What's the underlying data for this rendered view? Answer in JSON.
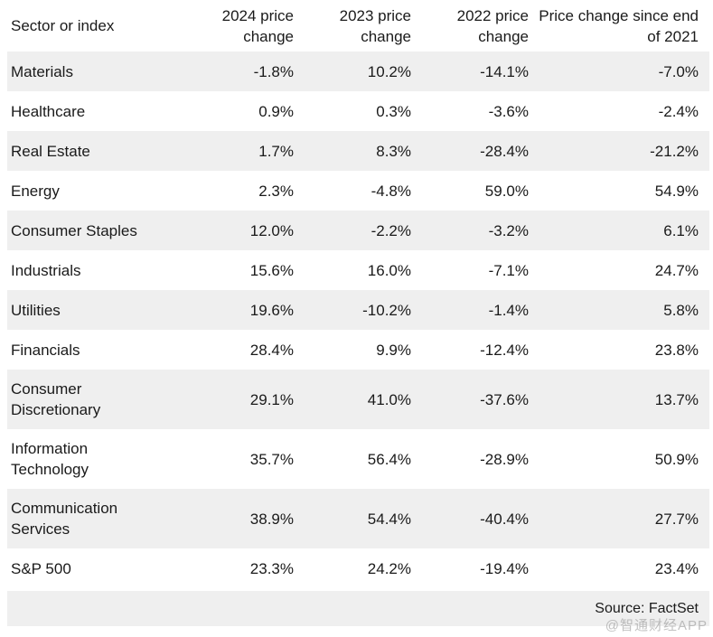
{
  "chart_data": {
    "type": "table",
    "columns": [
      "Sector or index",
      "2024 price change",
      "2023 price change",
      "2022 price change",
      "Price change since end of 2021"
    ],
    "rows": [
      {
        "sector": "Materials",
        "values": [
          "-1.8%",
          "10.2%",
          "-14.1%",
          "-7.0%"
        ]
      },
      {
        "sector": "Healthcare",
        "values": [
          "0.9%",
          "0.3%",
          "-3.6%",
          "-2.4%"
        ]
      },
      {
        "sector": "Real Estate",
        "values": [
          "1.7%",
          "8.3%",
          "-28.4%",
          "-21.2%"
        ]
      },
      {
        "sector": "Energy",
        "values": [
          "2.3%",
          "-4.8%",
          "59.0%",
          "54.9%"
        ]
      },
      {
        "sector": "Consumer Staples",
        "values": [
          "12.0%",
          "-2.2%",
          "-3.2%",
          "6.1%"
        ]
      },
      {
        "sector": "Industrials",
        "values": [
          "15.6%",
          "16.0%",
          "-7.1%",
          "24.7%"
        ]
      },
      {
        "sector": "Utilities",
        "values": [
          "19.6%",
          "-10.2%",
          "-1.4%",
          "5.8%"
        ]
      },
      {
        "sector": "Financials",
        "values": [
          "28.4%",
          "9.9%",
          "-12.4%",
          "23.8%"
        ]
      },
      {
        "sector": "Consumer Discretionary",
        "values": [
          "29.1%",
          "41.0%",
          "-37.6%",
          "13.7%"
        ]
      },
      {
        "sector": "Information Technology",
        "values": [
          "35.7%",
          "56.4%",
          "-28.9%",
          "50.9%"
        ]
      },
      {
        "sector": "Communication Services",
        "values": [
          "38.9%",
          "54.4%",
          "-40.4%",
          "27.7%"
        ]
      },
      {
        "sector": "S&P 500",
        "values": [
          "23.3%",
          "24.2%",
          "-19.4%",
          "23.4%"
        ]
      }
    ],
    "source_note": "Source: FactSet",
    "layout_hints": {
      "striped_rows": true,
      "value_alignment": "right",
      "header_alignment_numeric": "right"
    }
  },
  "watermark": "@智通财经APP",
  "colors": {
    "stripe": "#efefef",
    "text": "#1a1a1a",
    "background": "#ffffff",
    "watermark": "#8f8f8f"
  }
}
